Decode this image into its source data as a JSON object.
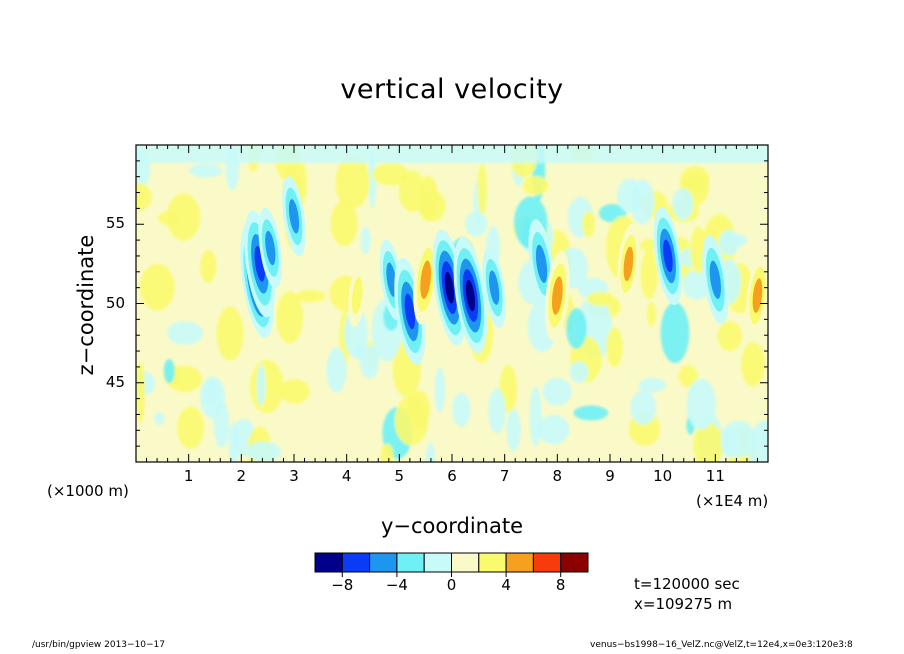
{
  "chart_data": {
    "type": "heatmap",
    "title": "vertical velocity",
    "xlabel": "y−coordinate",
    "ylabel": "z−coordinate",
    "x_unit_note": "(×1E4 m)",
    "y_unit_note": "(×1000 m)",
    "xlim": [
      0,
      12
    ],
    "ylim": [
      40,
      60
    ],
    "x_ticks": [
      "1",
      "2",
      "3",
      "4",
      "5",
      "6",
      "7",
      "8",
      "9",
      "10",
      "11"
    ],
    "y_ticks": [
      "45",
      "50",
      "55"
    ],
    "colorbar": {
      "levels_labels": [
        "−8",
        "−4",
        "0",
        "4",
        "8"
      ],
      "colors": [
        "#00008b",
        "#0a3cf5",
        "#1e96f0",
        "#6ef0f5",
        "#c8fafa",
        "#fafac8",
        "#fafa6e",
        "#f5a01e",
        "#f53c0a",
        "#8b0000"
      ]
    },
    "features": [
      {
        "y": 2.3,
        "z": 51.5,
        "value": -9
      },
      {
        "y": 2.35,
        "z": 52.5,
        "value": -8
      },
      {
        "y": 2.55,
        "z": 53.5,
        "value": -5
      },
      {
        "y": 3.0,
        "z": 55.5,
        "value": -5
      },
      {
        "y": 4.2,
        "z": 50.5,
        "value": 3
      },
      {
        "y": 4.85,
        "z": 51.5,
        "value": -5
      },
      {
        "y": 5.2,
        "z": 49.5,
        "value": -8
      },
      {
        "y": 5.5,
        "z": 51.5,
        "value": 6
      },
      {
        "y": 5.95,
        "z": 51.0,
        "value": -9
      },
      {
        "y": 6.35,
        "z": 50.5,
        "value": -9
      },
      {
        "y": 6.8,
        "z": 51.0,
        "value": -5
      },
      {
        "y": 7.7,
        "z": 52.5,
        "value": -6
      },
      {
        "y": 8.0,
        "z": 50.5,
        "value": 6
      },
      {
        "y": 9.35,
        "z": 52.5,
        "value": 5
      },
      {
        "y": 10.1,
        "z": 53.0,
        "value": -7
      },
      {
        "y": 11.0,
        "z": 51.5,
        "value": -6
      },
      {
        "y": 11.8,
        "z": 50.5,
        "value": 5
      }
    ]
  },
  "annotations": {
    "time": "t=120000 sec",
    "position": "x=109275 m"
  },
  "footer": {
    "left": "/usr/bin/gpview   2013−10−17",
    "right": "venus−bs1998−16_VelZ.nc@VelZ,t=12e4,x=0e3:120e3:8"
  }
}
